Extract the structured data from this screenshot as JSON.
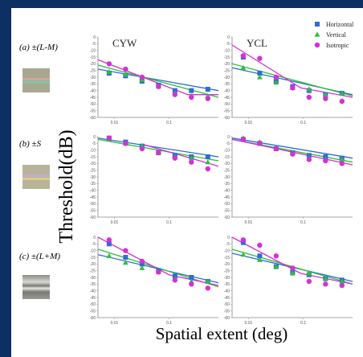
{
  "figure": {
    "ylabel": "Threshold(dB)",
    "xlabel": "Spatial extent (deg)"
  },
  "rows": [
    {
      "label": "(a) ±(L-M)",
      "swatch": "red-green-grating"
    },
    {
      "label": "(b) ±S",
      "swatch": "blue-yellow-grating"
    },
    {
      "label": "(c) ±(L+M)",
      "swatch": "luminance-grating"
    }
  ],
  "columns": [
    "CYW",
    "YCL"
  ],
  "legend": [
    {
      "name": "Horizontal",
      "color": "#2e6bd6",
      "marker": "square"
    },
    {
      "name": "Vertical",
      "color": "#2fbf3a",
      "marker": "triangle"
    },
    {
      "name": "Isotropic",
      "color": "#d62fd6",
      "marker": "circle"
    }
  ],
  "chart_data": [
    {
      "type": "scatter",
      "row": 0,
      "col": 0,
      "panel_title": "CYW",
      "x": [
        0.008,
        0.016,
        0.032,
        0.064,
        0.128,
        0.256,
        0.512
      ],
      "xscale": "log",
      "xlim": [
        0.005,
        0.8
      ],
      "ylim": [
        -60,
        0
      ],
      "xticks": [
        "0.01",
        "0.1"
      ],
      "yticks": [
        "0",
        "-5",
        "-10",
        "-15",
        "-20",
        "-25",
        "-30",
        "-35",
        "-40",
        "-45",
        "-50",
        "-55",
        "-60"
      ],
      "series": [
        {
          "name": "Horizontal",
          "values": [
            -27,
            -29,
            -33,
            -36,
            -40,
            -40,
            -39
          ],
          "fit": [
            [
              0.005,
              -24
            ],
            [
              0.8,
              -40
            ]
          ]
        },
        {
          "name": "Vertical",
          "values": [
            -26,
            -28,
            -32,
            -37,
            -42,
            -44,
            -44
          ],
          "fit": [
            [
              0.005,
              -21
            ],
            [
              0.8,
              -45
            ]
          ]
        },
        {
          "name": "Isotropic",
          "values": [
            -20,
            -24,
            -30,
            -37,
            -43,
            -45,
            -46
          ],
          "fit": [
            [
              0.005,
              -17
            ],
            [
              0.22,
              -43
            ],
            [
              0.8,
              -43
            ]
          ]
        }
      ]
    },
    {
      "type": "scatter",
      "row": 0,
      "col": 1,
      "panel_title": "YCL",
      "x": [
        0.008,
        0.016,
        0.032,
        0.064,
        0.128,
        0.256,
        0.512
      ],
      "xscale": "log",
      "xlim": [
        0.005,
        0.8
      ],
      "ylim": [
        -60,
        0
      ],
      "xticks": [
        "0.01",
        "0.1"
      ],
      "yticks": [
        "0",
        "-5",
        "-10",
        "-15",
        "-20",
        "-25",
        "-30",
        "-35",
        "-40",
        "-45",
        "-50",
        "-55",
        "-60"
      ],
      "series": [
        {
          "name": "Horizontal",
          "values": [
            -15,
            -27,
            -33,
            -37,
            -40,
            -43,
            -42
          ],
          "fit": [
            [
              0.005,
              -23
            ],
            [
              0.8,
              -43
            ]
          ]
        },
        {
          "name": "Vertical",
          "values": [
            -23,
            -30,
            -34,
            -38,
            -39,
            -43,
            -42
          ],
          "fit": [
            [
              0.005,
              -20
            ],
            [
              0.8,
              -44
            ]
          ]
        },
        {
          "name": "Isotropic",
          "values": [
            -14,
            -16,
            -30,
            -38,
            -45,
            -46,
            -48
          ],
          "fit": [
            [
              0.005,
              -6
            ],
            [
              0.09,
              -38
            ],
            [
              0.8,
              -45
            ]
          ]
        }
      ]
    },
    {
      "type": "scatter",
      "row": 1,
      "col": 0,
      "panel_title": "",
      "x": [
        0.008,
        0.016,
        0.032,
        0.064,
        0.128,
        0.256,
        0.512
      ],
      "xscale": "log",
      "xlim": [
        0.005,
        0.8
      ],
      "ylim": [
        -60,
        0
      ],
      "xticks": [
        "0.01",
        "0.1"
      ],
      "yticks": [
        "0",
        "-5",
        "-10",
        "-15",
        "-20",
        "-25",
        "-30",
        "-35",
        "-40",
        "-45",
        "-50",
        "-55",
        "-60"
      ],
      "series": [
        {
          "name": "Horizontal",
          "values": [
            -1,
            -4,
            -7,
            -12,
            -14,
            -15,
            -15
          ],
          "fit": [
            [
              0.005,
              -1
            ],
            [
              0.8,
              -15
            ]
          ]
        },
        {
          "name": "Vertical",
          "values": [
            -2,
            -5,
            -7,
            -12,
            -15,
            -16,
            -19
          ],
          "fit": [
            [
              0.005,
              -2
            ],
            [
              0.8,
              -18
            ]
          ]
        },
        {
          "name": "Isotropic",
          "values": [
            -1,
            -5,
            -9,
            -12,
            -16,
            -19,
            -24
          ],
          "fit": [
            [
              0.035,
              -6
            ],
            [
              0.8,
              -22
            ]
          ]
        }
      ]
    },
    {
      "type": "scatter",
      "row": 1,
      "col": 1,
      "panel_title": "",
      "x": [
        0.008,
        0.016,
        0.032,
        0.064,
        0.128,
        0.256,
        0.512
      ],
      "xscale": "log",
      "xlim": [
        0.005,
        0.8
      ],
      "ylim": [
        -60,
        0
      ],
      "xticks": [
        "0.01",
        "0.1"
      ],
      "yticks": [
        "0",
        "-5",
        "-10",
        "-15",
        "-20",
        "-25",
        "-30",
        "-35",
        "-40",
        "-45",
        "-50",
        "-55",
        "-60"
      ],
      "series": [
        {
          "name": "Horizontal",
          "values": [
            -2,
            -5,
            -9,
            -12,
            -14,
            -15,
            -16
          ],
          "fit": [
            [
              0.005,
              -1
            ],
            [
              0.8,
              -16
            ]
          ]
        },
        {
          "name": "Vertical",
          "values": [
            -1,
            -4,
            -8,
            -12,
            -16,
            -17,
            -17
          ],
          "fit": [
            [
              0.005,
              -2
            ],
            [
              0.8,
              -19
            ]
          ]
        },
        {
          "name": "Isotropic",
          "values": [
            -2,
            -5,
            -9,
            -13,
            -17,
            -18,
            -20
          ],
          "fit": [
            [
              0.005,
              -2
            ],
            [
              0.8,
              -21
            ]
          ]
        }
      ]
    },
    {
      "type": "scatter",
      "row": 2,
      "col": 0,
      "panel_title": "",
      "x": [
        0.008,
        0.016,
        0.032,
        0.064,
        0.128,
        0.256,
        0.512
      ],
      "xscale": "log",
      "xlim": [
        0.005,
        0.8
      ],
      "ylim": [
        -60,
        0
      ],
      "xticks": [
        "0.01",
        "0.1"
      ],
      "yticks": [
        "0",
        "-5",
        "-10",
        "-15",
        "-20",
        "-25",
        "-30",
        "-35",
        "-40",
        "-45",
        "-50",
        "-55",
        "-60"
      ],
      "series": [
        {
          "name": "Horizontal",
          "values": [
            -5,
            -15,
            -20,
            -25,
            -29,
            -30,
            -33
          ],
          "fit": [
            [
              0.005,
              -13
            ],
            [
              0.8,
              -34
            ]
          ]
        },
        {
          "name": "Vertical",
          "values": [
            -14,
            -19,
            -23,
            -26,
            -31,
            -33,
            -33
          ],
          "fit": [
            [
              0.005,
              -9
            ],
            [
              0.8,
              -37
            ]
          ]
        },
        {
          "name": "Isotropic",
          "values": [
            -2,
            -10,
            -18,
            -26,
            -32,
            -35,
            -38
          ],
          "fit": [
            [
              0.005,
              0
            ],
            [
              0.1,
              -28
            ],
            [
              0.8,
              -36
            ]
          ]
        }
      ]
    },
    {
      "type": "scatter",
      "row": 2,
      "col": 1,
      "panel_title": "",
      "x": [
        0.008,
        0.016,
        0.032,
        0.064,
        0.128,
        0.256,
        0.512
      ],
      "xscale": "log",
      "xlim": [
        0.005,
        0.8
      ],
      "ylim": [
        -60,
        0
      ],
      "xticks": [
        "0.01",
        "0.1"
      ],
      "yticks": [
        "0",
        "-5",
        "-10",
        "-15",
        "-20",
        "-25",
        "-30",
        "-35",
        "-40",
        "-45",
        "-50",
        "-55",
        "-60"
      ],
      "series": [
        {
          "name": "Horizontal",
          "values": [
            -4,
            -14,
            -22,
            -26,
            -28,
            -31,
            -32
          ],
          "fit": [
            [
              0.005,
              -12
            ],
            [
              0.8,
              -33
            ]
          ]
        },
        {
          "name": "Vertical",
          "values": [
            -13,
            -17,
            -22,
            -27,
            -27,
            -31,
            -33
          ],
          "fit": [
            [
              0.005,
              -9
            ],
            [
              0.8,
              -35
            ]
          ]
        },
        {
          "name": "Isotropic",
          "values": [
            -2,
            -6,
            -14,
            -23,
            -33,
            -35,
            -36
          ],
          "fit": [
            [
              0.005,
              0
            ],
            [
              0.09,
              -27
            ],
            [
              0.8,
              -35
            ]
          ]
        }
      ]
    }
  ]
}
